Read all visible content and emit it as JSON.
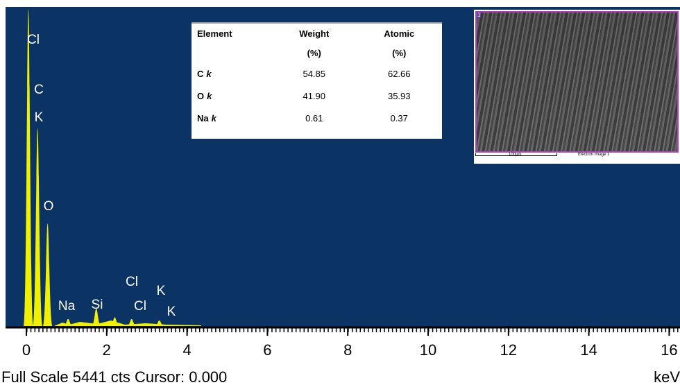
{
  "chart_data": {
    "type": "spectrum",
    "x_label": "keV",
    "color": "#f0f000",
    "x": [
      0.05,
      0.28,
      0.53,
      1.04,
      1.74,
      2.2,
      2.62,
      3.31
    ],
    "values": [
      5400,
      3370,
      1750,
      120,
      300,
      150,
      120,
      95
    ],
    "xlim": [
      0,
      16.27
    ],
    "ylim": [
      0,
      5441
    ],
    "xticks": [
      0,
      2,
      4,
      6,
      8,
      10,
      12,
      14,
      16
    ],
    "annotations": [
      "Cl",
      "C",
      "K",
      "O",
      "Na",
      "Si",
      "Cl",
      "K",
      "Cl",
      "K"
    ]
  },
  "status": "Full Scale 5441 cts Cursor: 0.000",
  "table": {
    "header": [
      "Element",
      "Weight",
      "Atomic"
    ],
    "units": [
      "(%)",
      "(%)"
    ],
    "rows": [
      {
        "element": "C",
        "shell": "k",
        "weight": "54.85",
        "atomic": "62.66"
      },
      {
        "element": "O",
        "shell": "k",
        "weight": "41.90",
        "atomic": "35.93"
      },
      {
        "element": "Na",
        "shell": "k",
        "weight": "0.61",
        "atomic": "0.37"
      }
    ]
  },
  "inset": {
    "index": "1",
    "scale": "100µm",
    "caption": "Electron Image 1"
  }
}
